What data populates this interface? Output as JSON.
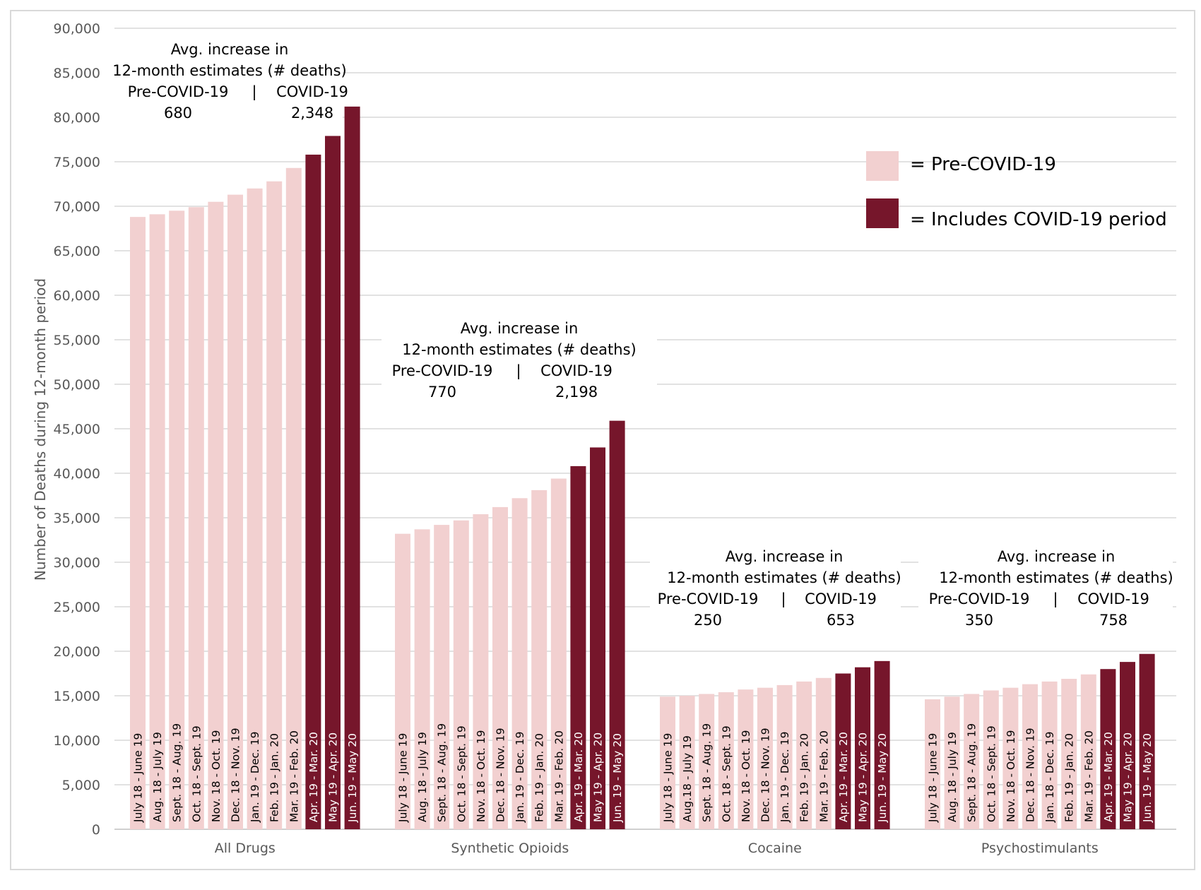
{
  "chart_data": {
    "type": "bar",
    "ylabel": "Number of Deaths during 12-month period",
    "ylim": [
      0,
      90000
    ],
    "yticks": [
      "0",
      "5,000",
      "10,000",
      "15,000",
      "20,000",
      "25,000",
      "30,000",
      "35,000",
      "40,000",
      "45,000",
      "50,000",
      "55,000",
      "60,000",
      "65,000",
      "70,000",
      "75,000",
      "80,000",
      "85,000",
      "90,000"
    ],
    "grid": true,
    "legend_position": "top-right",
    "colors": {
      "pre": "#f2d0d0",
      "covid": "#76162b"
    },
    "legend": [
      {
        "key": "pre",
        "label": "= Pre-COVID-19"
      },
      {
        "key": "covid",
        "label": "= Includes COVID-19 period"
      }
    ],
    "groups": [
      {
        "name": "All Drugs",
        "periods": [
          "July 18 - June 19",
          "Aug. 18 - July 19",
          "Sept. 18 - Aug. 19",
          "Oct. 18 - Sept. 19",
          "Nov. 18 - Oct. 19",
          "Dec. 18 - Nov. 19",
          "Jan. 19 - Dec. 19",
          "Feb. 19 - Jan. 20",
          "Mar. 19 - Feb. 20",
          "Apr. 19 - Mar. 20",
          "May 19 - Apr. 20",
          "Jun. 19 - May 20"
        ],
        "values": [
          68800,
          69100,
          69500,
          69900,
          70500,
          71300,
          72000,
          72800,
          74300,
          75800,
          77900,
          81200
        ],
        "period_type": [
          "pre",
          "pre",
          "pre",
          "pre",
          "pre",
          "pre",
          "pre",
          "pre",
          "pre",
          "covid",
          "covid",
          "covid"
        ],
        "annotation": {
          "line1": "Avg. increase in",
          "line2": "12-month estimates (# deaths)",
          "pre_label": "Pre-COVID-19",
          "divider": "|",
          "covid_label": "COVID-19",
          "pre_value": "680",
          "covid_value": "2,348"
        }
      },
      {
        "name": "Synthetic Opioids",
        "periods": [
          "July 18 - June 19",
          "Aug. 18 - July 19",
          "Sept. 18 - Aug. 19",
          "Oct. 18 - Sept. 19",
          "Nov. 18 - Oct. 19",
          "Dec. 18 - Nov. 19",
          "Jan. 19 - Dec. 19",
          "Feb. 19 - Jan. 20",
          "Mar. 19 - Feb. 20",
          "Apr. 19 - Mar. 20",
          "May 19 - Apr. 20",
          "Jun. 19 - May 20"
        ],
        "values": [
          33200,
          33700,
          34200,
          34700,
          35400,
          36200,
          37200,
          38100,
          39400,
          40800,
          42900,
          45900
        ],
        "period_type": [
          "pre",
          "pre",
          "pre",
          "pre",
          "pre",
          "pre",
          "pre",
          "pre",
          "pre",
          "covid",
          "covid",
          "covid"
        ],
        "annotation": {
          "line1": "Avg. increase in",
          "line2": "12-month estimates (# deaths)",
          "pre_label": "Pre-COVID-19",
          "divider": "|",
          "covid_label": "COVID-19",
          "pre_value": "770",
          "covid_value": "2,198"
        }
      },
      {
        "name": "Cocaine",
        "periods": [
          "July 18 - June 19",
          "Aug.18 - July 19",
          "Sept. 18 - Aug. 19",
          "Oct. 18 - Sept. 19",
          "Nov. 18 - Oct. 19",
          "Dec. 18 - Nov. 19",
          "Jan. 19 - Dec. 19",
          "Feb. 19 - Jan. 20",
          "Mar. 19 - Feb. 20",
          "Apr. 19 - Mar. 20",
          "May 19 - Apr. 20",
          "Jun. 19 - May 20"
        ],
        "values": [
          14900,
          15000,
          15200,
          15400,
          15700,
          15900,
          16200,
          16600,
          17000,
          17500,
          18200,
          18900
        ],
        "period_type": [
          "pre",
          "pre",
          "pre",
          "pre",
          "pre",
          "pre",
          "pre",
          "pre",
          "pre",
          "covid",
          "covid",
          "covid"
        ],
        "annotation": {
          "line1": "Avg. increase in",
          "line2": "12-month estimates (# deaths)",
          "pre_label": "Pre-COVID-19",
          "divider": "|",
          "covid_label": "COVID-19",
          "pre_value": "250",
          "covid_value": "653"
        }
      },
      {
        "name": "Psychostimulants",
        "periods": [
          "July 18 - June 19",
          "Aug. 18 - July 19",
          "Sept. 18 - Aug. 19",
          "Oct. 18 - Sept. 19",
          "Nov. 18 - Oct. 19",
          "Dec. 18 - Nov. 19",
          "Jan. 18 - Dec. 19",
          "Feb. 19 - Jan. 20",
          "Mar. 19 - Feb. 20",
          "Apr. 19 - Mar. 20",
          "May 19 - Apr. 20",
          "Jun. 19 - May 20"
        ],
        "values": [
          14600,
          14900,
          15200,
          15600,
          15900,
          16300,
          16600,
          16900,
          17400,
          18000,
          18800,
          19700
        ],
        "period_type": [
          "pre",
          "pre",
          "pre",
          "pre",
          "pre",
          "pre",
          "pre",
          "pre",
          "pre",
          "covid",
          "covid",
          "covid"
        ],
        "annotation": {
          "line1": "Avg. increase in",
          "line2": "12-month estimates (# deaths)",
          "pre_label": "Pre-COVID-19",
          "divider": "|",
          "covid_label": "COVID-19",
          "pre_value": "350",
          "covid_value": "758"
        }
      }
    ]
  }
}
